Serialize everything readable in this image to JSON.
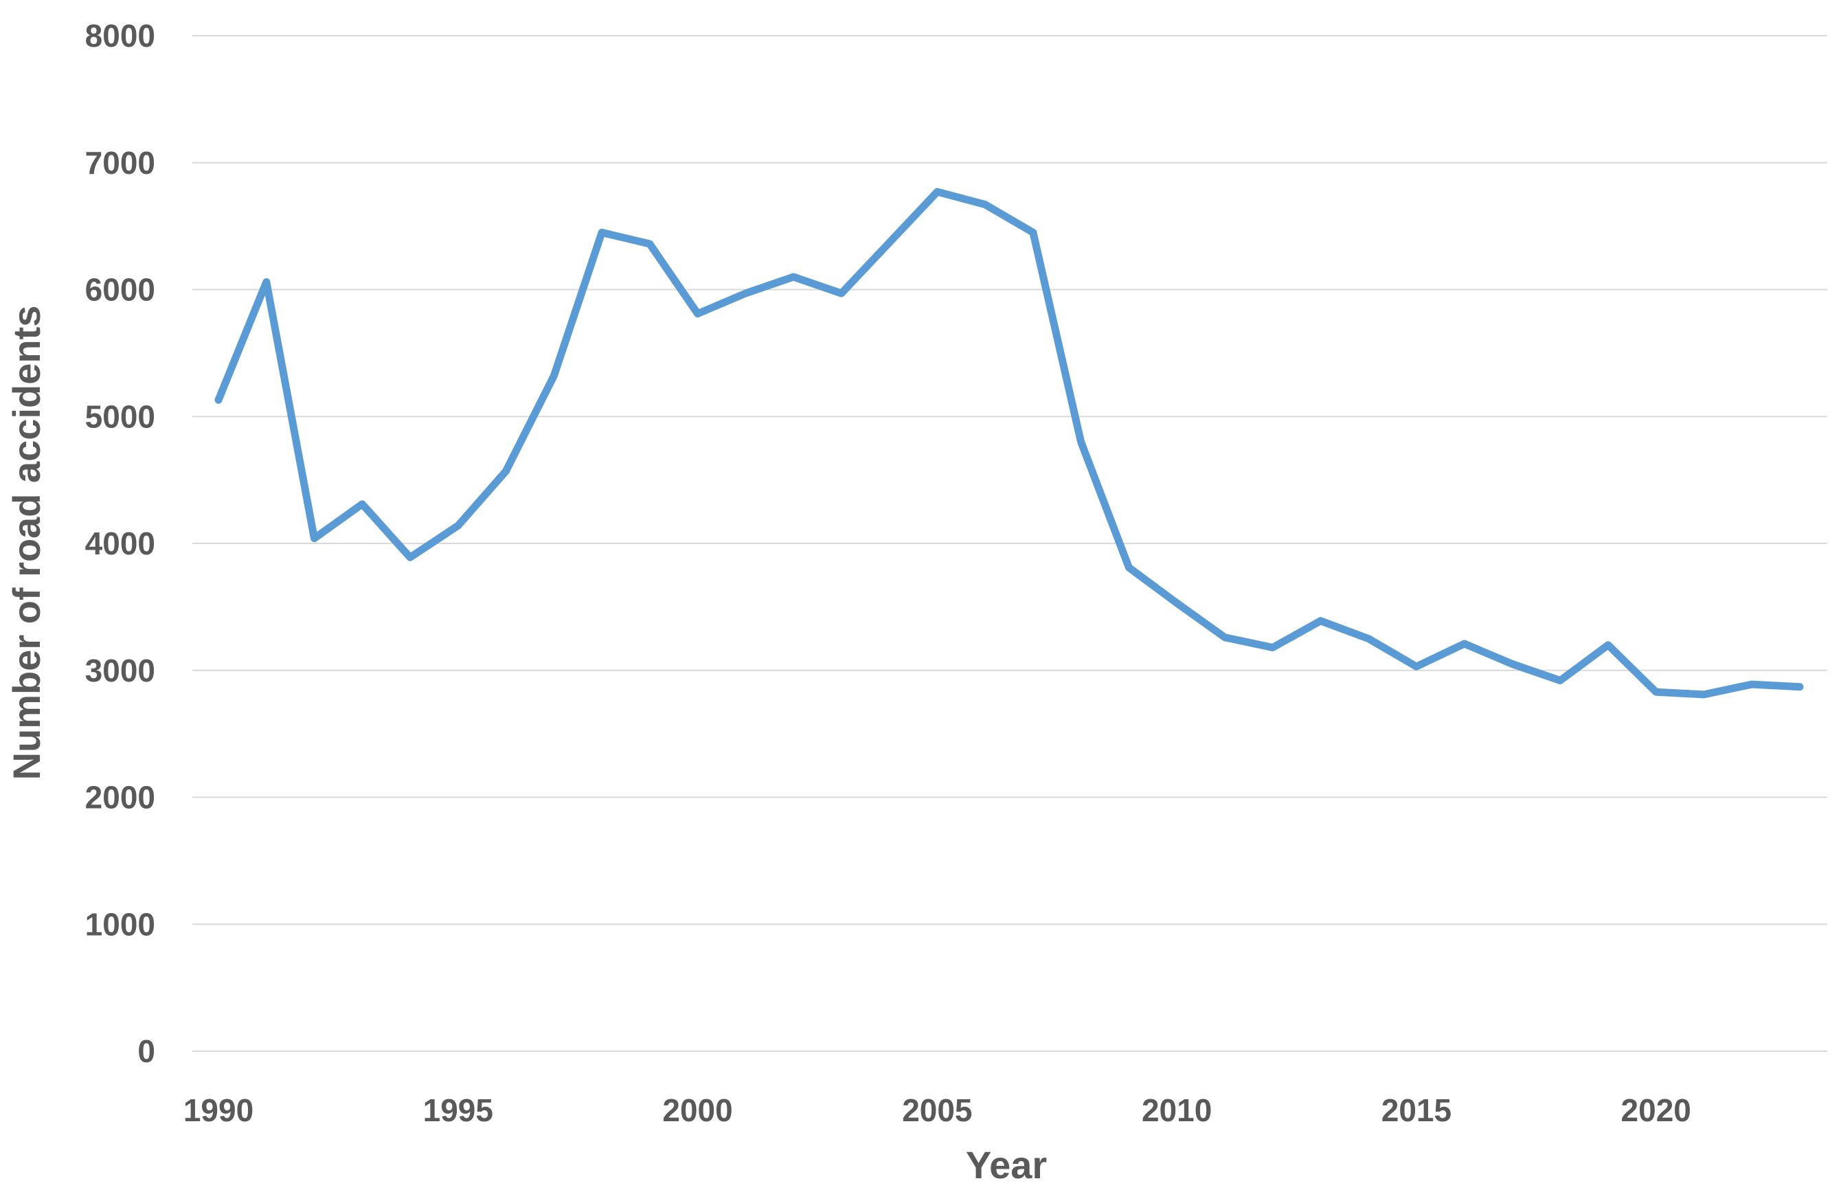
{
  "chart_data": {
    "type": "line",
    "xlabel": "Year",
    "ylabel": "Number of road accidents",
    "xlim": [
      1990,
      2023
    ],
    "ylim": [
      0,
      8000
    ],
    "x_ticks": [
      1990,
      1995,
      2000,
      2005,
      2010,
      2015,
      2020
    ],
    "y_ticks": [
      0,
      1000,
      2000,
      3000,
      4000,
      5000,
      6000,
      7000,
      8000
    ],
    "grid": true,
    "legend": "none",
    "series": [
      {
        "color": "#5b9bd5",
        "x": [
          1990,
          1991,
          1992,
          1993,
          1994,
          1995,
          1996,
          1997,
          1998,
          1999,
          2000,
          2001,
          2002,
          2003,
          2004,
          2005,
          2006,
          2007,
          2008,
          2009,
          2010,
          2011,
          2012,
          2013,
          2014,
          2015,
          2016,
          2017,
          2018,
          2019,
          2020,
          2021,
          2022,
          2023
        ],
        "y": [
          5130,
          6060,
          4040,
          4310,
          3890,
          4140,
          4570,
          5320,
          6450,
          6360,
          5810,
          5970,
          6100,
          5970,
          6370,
          6770,
          6670,
          6450,
          4800,
          3810,
          3530,
          3260,
          3180,
          3390,
          3250,
          3030,
          3210,
          3050,
          2920,
          3200,
          2830,
          2810,
          2890,
          2870
        ]
      }
    ]
  }
}
